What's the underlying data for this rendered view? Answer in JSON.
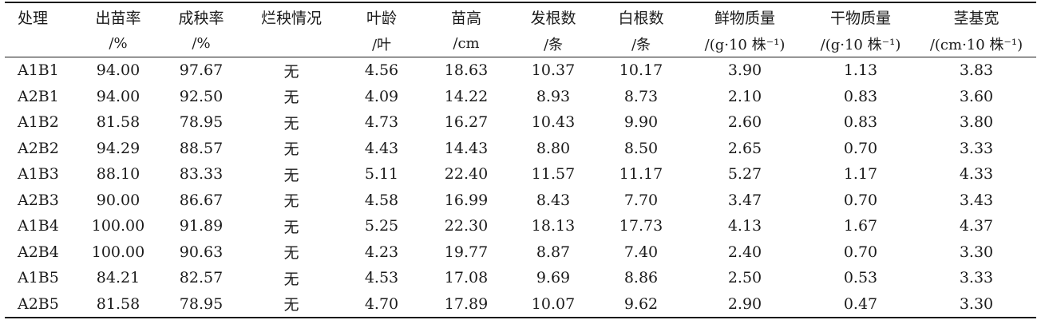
{
  "table": {
    "columns": [
      {
        "name": "处理",
        "unit": ""
      },
      {
        "name": "出苗率",
        "unit": "/%"
      },
      {
        "name": "成秧率",
        "unit": "/%"
      },
      {
        "name": "烂秧情况",
        "unit": ""
      },
      {
        "name": "叶龄",
        "unit": "/叶"
      },
      {
        "name": "苗高",
        "unit": "/cm"
      },
      {
        "name": "发根数",
        "unit": "/条"
      },
      {
        "name": "白根数",
        "unit": "/条"
      },
      {
        "name": "鲜物质量",
        "unit": "/(g·10 株⁻¹)"
      },
      {
        "name": "干物质量",
        "unit": "/(g·10 株⁻¹)"
      },
      {
        "name": "茎基宽",
        "unit": "/(cm·10 株⁻¹)"
      }
    ],
    "rows": [
      [
        "A1B1",
        "94.00",
        "97.67",
        "无",
        "4.56",
        "18.63",
        "10.37",
        "10.17",
        "3.90",
        "1.13",
        "3.83"
      ],
      [
        "A2B1",
        "94.00",
        "92.50",
        "无",
        "4.09",
        "14.22",
        "8.93",
        "8.73",
        "2.10",
        "0.83",
        "3.60"
      ],
      [
        "A1B2",
        "81.58",
        "78.95",
        "无",
        "4.73",
        "16.27",
        "10.43",
        "9.90",
        "2.60",
        "0.83",
        "3.80"
      ],
      [
        "A2B2",
        "94.29",
        "88.57",
        "无",
        "4.43",
        "14.43",
        "8.80",
        "8.50",
        "2.65",
        "0.70",
        "3.33"
      ],
      [
        "A1B3",
        "88.10",
        "83.33",
        "无",
        "5.11",
        "22.40",
        "11.57",
        "11.17",
        "5.27",
        "1.17",
        "4.33"
      ],
      [
        "A2B3",
        "90.00",
        "86.67",
        "无",
        "4.58",
        "16.99",
        "8.43",
        "7.70",
        "3.47",
        "0.70",
        "3.43"
      ],
      [
        "A1B4",
        "100.00",
        "91.89",
        "无",
        "5.25",
        "22.30",
        "18.13",
        "17.73",
        "4.13",
        "1.67",
        "4.37"
      ],
      [
        "A2B4",
        "100.00",
        "90.63",
        "无",
        "4.23",
        "19.77",
        "8.87",
        "7.40",
        "2.40",
        "0.70",
        "3.30"
      ],
      [
        "A1B5",
        "84.21",
        "82.57",
        "无",
        "4.53",
        "17.08",
        "9.69",
        "8.86",
        "2.50",
        "0.53",
        "3.33"
      ],
      [
        "A2B5",
        "81.58",
        "78.95",
        "无",
        "4.70",
        "17.89",
        "10.07",
        "9.62",
        "2.90",
        "0.47",
        "3.30"
      ]
    ]
  }
}
